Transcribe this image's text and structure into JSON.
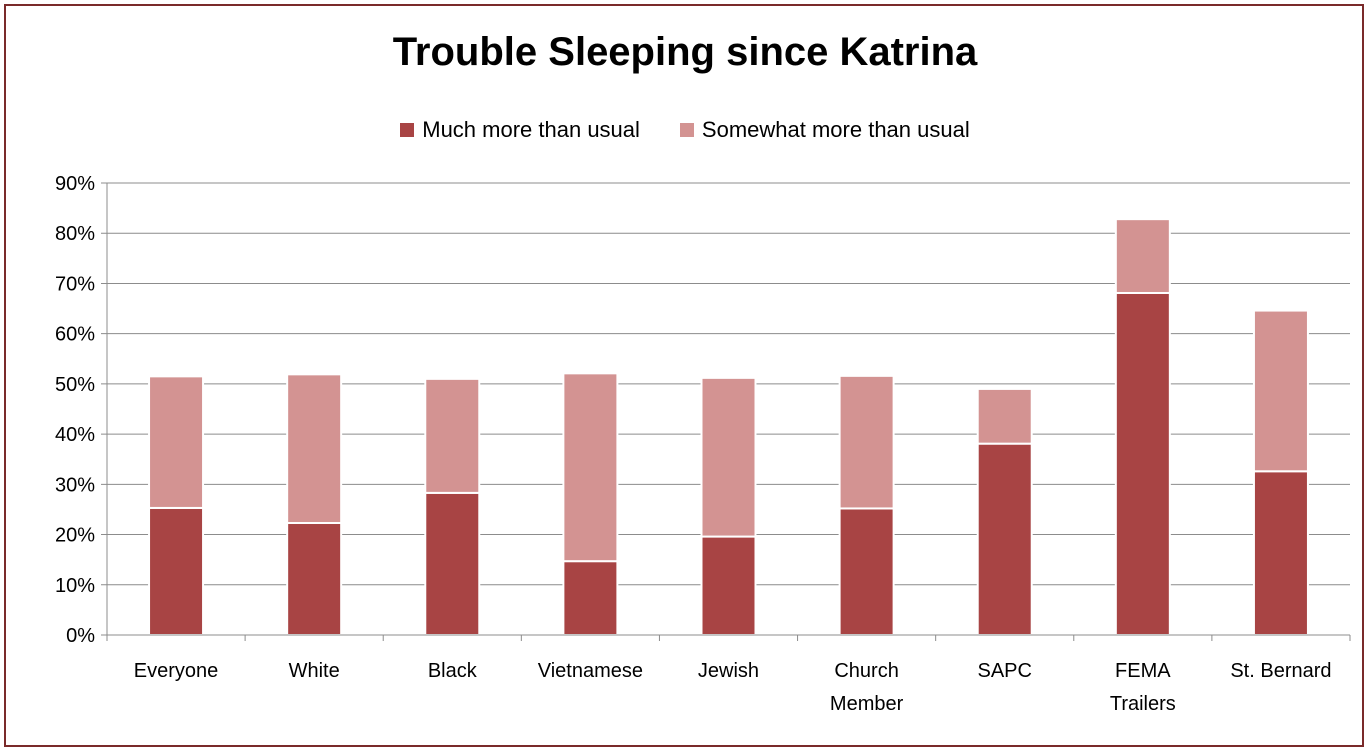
{
  "chart_data": {
    "type": "bar",
    "stacked": true,
    "title": "Trouble Sleeping since Katrina",
    "categories": [
      "Everyone",
      "White",
      "Black",
      "Vietnamese",
      "Jewish",
      "Church Member",
      "SAPC",
      "FEMA Trailers",
      "St. Bernard"
    ],
    "series": [
      {
        "name": "Much more than usual",
        "color": "#a84444",
        "values": [
          25.3,
          22.3,
          28.3,
          14.7,
          19.6,
          25.2,
          38.1,
          68.1,
          32.6
        ]
      },
      {
        "name": "Somewhat more than usual",
        "color": "#d39392",
        "values": [
          26.2,
          29.6,
          22.7,
          37.4,
          31.6,
          26.4,
          10.9,
          14.7,
          32.0
        ]
      }
    ],
    "ylim": [
      0,
      90
    ],
    "yticks": [
      "0%",
      "10%",
      "20%",
      "30%",
      "40%",
      "50%",
      "60%",
      "70%",
      "80%",
      "90%"
    ],
    "grid": true,
    "legend_position": "top"
  }
}
